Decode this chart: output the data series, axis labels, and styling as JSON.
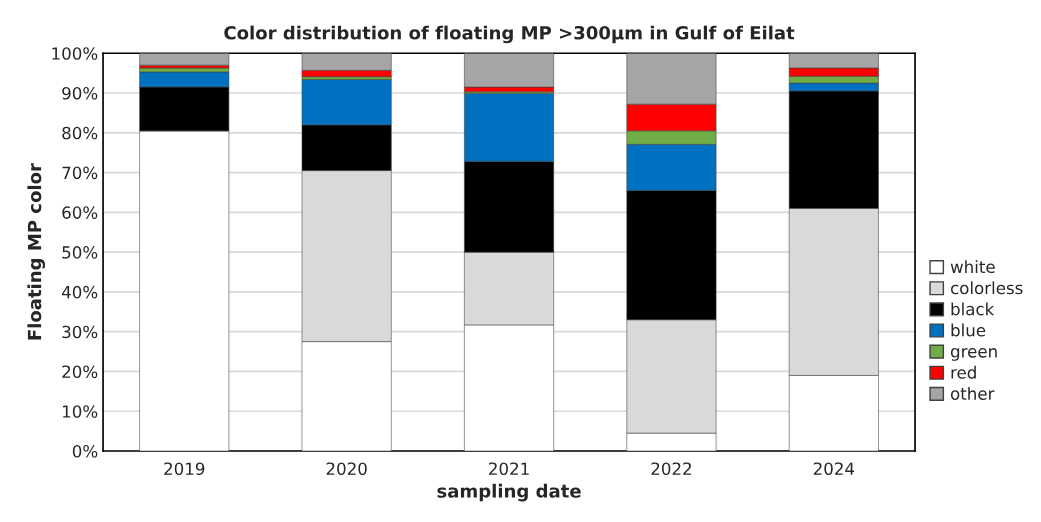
{
  "chart_data": {
    "type": "bar",
    "stacked": true,
    "title": "Color distribution of floating MP >300µm in Gulf of Eilat",
    "xlabel": "sampling date",
    "ylabel": "Floating MP color",
    "categories": [
      "2019",
      "2020",
      "2021",
      "2022",
      "2024"
    ],
    "series": [
      {
        "name": "white",
        "color": "#ffffff",
        "values": [
          80.5,
          27.5,
          31.7,
          4.5,
          19
        ]
      },
      {
        "name": "colorless",
        "color": "#d9d9d9",
        "values": [
          0,
          43,
          18.3,
          28.5,
          42
        ]
      },
      {
        "name": "black",
        "color": "#000000",
        "values": [
          11,
          11.5,
          22.8,
          32.5,
          29.5
        ]
      },
      {
        "name": "blue",
        "color": "#0070c0",
        "values": [
          3.8,
          11.4,
          17.1,
          11.6,
          2.0
        ]
      },
      {
        "name": "green",
        "color": "#70ad47",
        "values": [
          1.0,
          0.7,
          0.4,
          3.4,
          1.7
        ]
      },
      {
        "name": "red",
        "color": "#ff0000",
        "values": [
          0.7,
          1.6,
          1.2,
          6.7,
          2.1
        ]
      },
      {
        "name": "other",
        "color": "#a5a5a5",
        "values": [
          3.0,
          4.3,
          8.5,
          12.8,
          3.7
        ]
      }
    ],
    "ylim": [
      0,
      100
    ],
    "yticks": [
      {
        "value": 0,
        "label": "0%"
      },
      {
        "value": 10,
        "label": "10%"
      },
      {
        "value": 20,
        "label": "20%"
      },
      {
        "value": 30,
        "label": "30%"
      },
      {
        "value": 40,
        "label": "40%"
      },
      {
        "value": 50,
        "label": "50%"
      },
      {
        "value": 60,
        "label": "60%"
      },
      {
        "value": 70,
        "label": "70%"
      },
      {
        "value": 80,
        "label": "80%"
      },
      {
        "value": 90,
        "label": "90%"
      },
      {
        "value": 100,
        "label": "100%"
      }
    ],
    "grid": "y",
    "legend": "right"
  }
}
